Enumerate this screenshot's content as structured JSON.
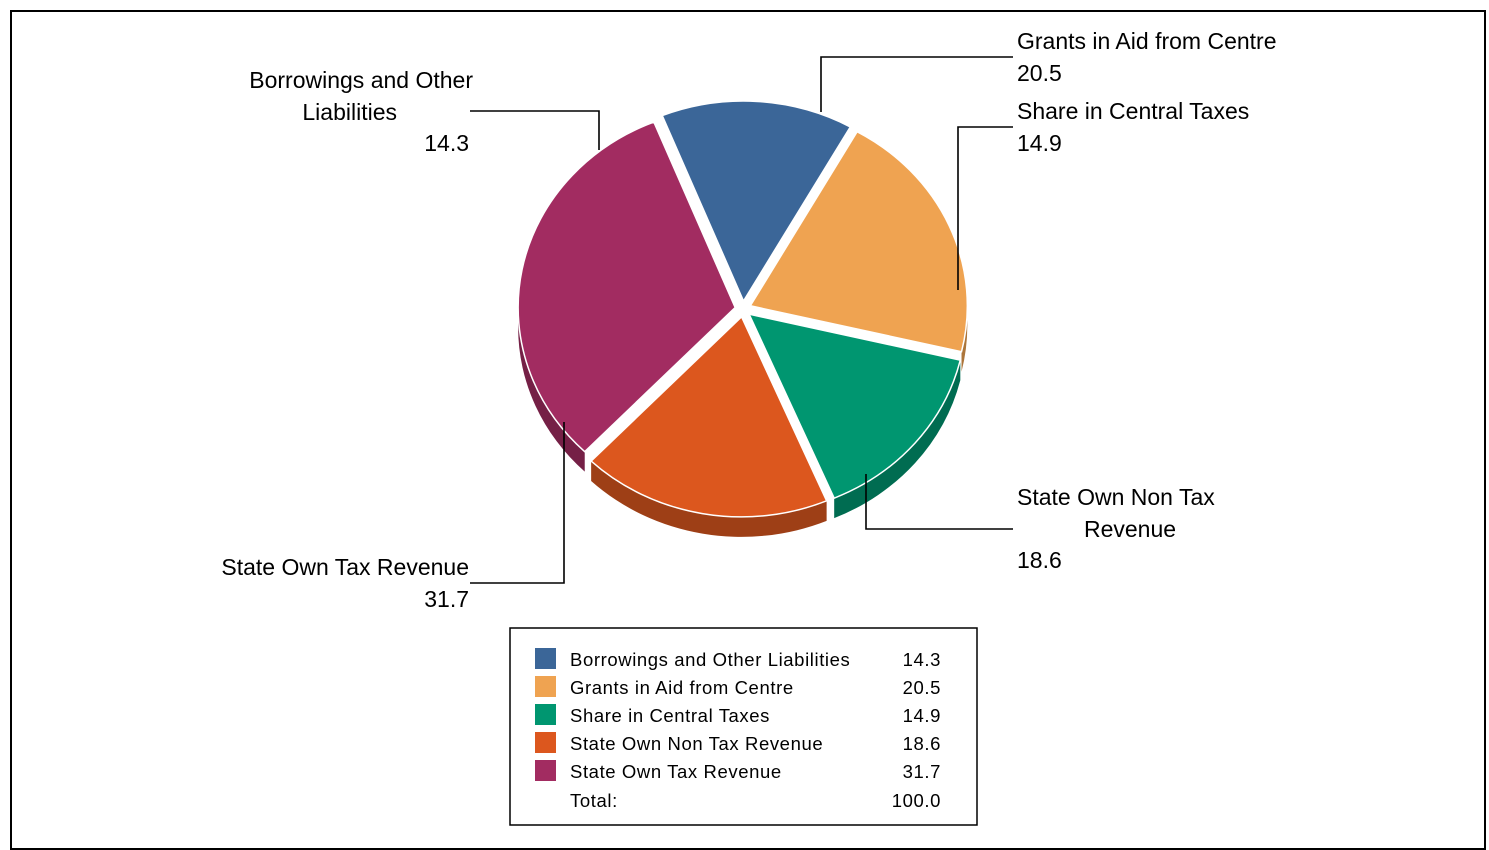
{
  "chart_data": {
    "type": "pie",
    "title": "",
    "slices": [
      {
        "label": "Borrowings and Other Liabilities",
        "value": 14.3,
        "color": "#3b6698"
      },
      {
        "label": "Grants in Aid from Centre",
        "value": 20.5,
        "color": "#efa351"
      },
      {
        "label": "Share in Central Taxes",
        "value": 14.9,
        "color": "#009670"
      },
      {
        "label": "State Own Non Tax Revenue",
        "value": 18.6,
        "color": "#dc571e"
      },
      {
        "label": "State Own Tax Revenue",
        "value": 31.7,
        "color": "#a22c61"
      }
    ],
    "callouts": [
      {
        "name": "callout-borrowings",
        "lines": [
          "Borrowings and Other",
          "Liabilities"
        ],
        "value": "14.3"
      },
      {
        "name": "callout-grants",
        "lines": [
          "Grants in Aid from Centre"
        ],
        "value": "20.5"
      },
      {
        "name": "callout-share",
        "lines": [
          "Share in Central Taxes"
        ],
        "value": "14.9"
      },
      {
        "name": "callout-nontax",
        "lines": [
          "State Own Non Tax",
          "Revenue"
        ],
        "value": "18.6"
      },
      {
        "name": "callout-tax",
        "lines": [
          "State Own Tax Revenue"
        ],
        "value": "31.7"
      }
    ],
    "legend": {
      "placement": "bottom-center",
      "rows": [
        {
          "label": "Borrowings and Other Liabilities",
          "value": "14.3",
          "color": "#3b6698"
        },
        {
          "label": "Grants in Aid from Centre",
          "value": "20.5",
          "color": "#efa351"
        },
        {
          "label": "Share in Central Taxes",
          "value": "14.9",
          "color": "#009670"
        },
        {
          "label": "State Own Non Tax Revenue",
          "value": "18.6",
          "color": "#dc571e"
        },
        {
          "label": "State Own Tax Revenue",
          "value": "31.7",
          "color": "#a22c61"
        }
      ],
      "total_label": "Total:",
      "total_value": "100.0"
    }
  }
}
